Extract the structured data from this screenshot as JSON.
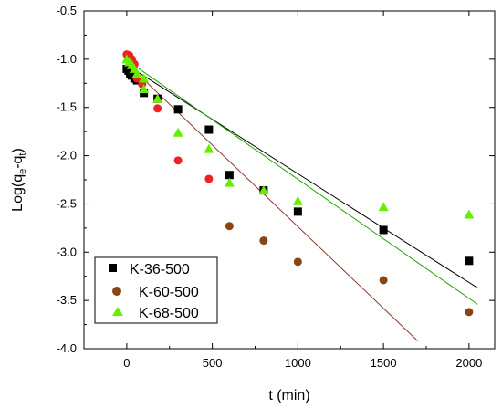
{
  "chart_data": {
    "type": "scatter",
    "xlabel": "t (min)",
    "ylabel": "Log(qe-qt)",
    "ylabel_parts": {
      "base": "Log(q",
      "sub1": "e",
      "mid": "-q",
      "sub2": "t",
      "end": ")"
    },
    "xlim": [
      -250,
      2150
    ],
    "ylim": [
      -4.0,
      -0.5
    ],
    "x_ticks": [
      0,
      500,
      1000,
      1500,
      2000
    ],
    "x_tick_labels": [
      "0",
      "500",
      "1000",
      "1500",
      "2000"
    ],
    "y_ticks": [
      -0.5,
      -1.0,
      -1.5,
      -2.0,
      -2.5,
      -3.0,
      -3.5,
      -4.0
    ],
    "y_tick_labels": [
      "-0.5",
      "-1.0",
      "-1.5",
      "-2.0",
      "-2.5",
      "-3.0",
      "-3.5",
      "-4.0"
    ],
    "grid": false,
    "legend_position": "bottom-left",
    "series": [
      {
        "name": "K-36-500",
        "marker": "square",
        "color": "#000000",
        "fit_color": "#000000",
        "fit_line": {
          "x": [
            0,
            2050
          ],
          "y": [
            -1.06,
            -3.37
          ]
        },
        "points": [
          {
            "x": 0,
            "y": -1.1
          },
          {
            "x": 10,
            "y": -1.12
          },
          {
            "x": 20,
            "y": -1.15
          },
          {
            "x": 30,
            "y": -1.17
          },
          {
            "x": 45,
            "y": -1.2
          },
          {
            "x": 60,
            "y": -1.22
          },
          {
            "x": 100,
            "y": -1.35
          },
          {
            "x": 180,
            "y": -1.41
          },
          {
            "x": 300,
            "y": -1.52
          },
          {
            "x": 480,
            "y": -1.73
          },
          {
            "x": 600,
            "y": -2.2
          },
          {
            "x": 800,
            "y": -2.36
          },
          {
            "x": 1000,
            "y": -2.58
          },
          {
            "x": 1500,
            "y": -2.77
          },
          {
            "x": 2000,
            "y": -3.09
          }
        ]
      },
      {
        "name": "K-60-500",
        "marker": "circle",
        "color": "#8b4513",
        "color_early": "#ee2222",
        "fit_color": "#8b3a2a",
        "fit_line": {
          "x": [
            -20,
            1700
          ],
          "y": [
            -1.01,
            -3.92
          ]
        },
        "points": [
          {
            "x": 0,
            "y": -0.95
          },
          {
            "x": 15,
            "y": -0.96
          },
          {
            "x": 30,
            "y": -1.0
          },
          {
            "x": 45,
            "y": -1.05
          },
          {
            "x": 60,
            "y": -1.2
          },
          {
            "x": 90,
            "y": -1.26
          },
          {
            "x": 180,
            "y": -1.51
          },
          {
            "x": 300,
            "y": -2.05
          },
          {
            "x": 480,
            "y": -2.24
          },
          {
            "x": 600,
            "y": -2.73
          },
          {
            "x": 800,
            "y": -2.88
          },
          {
            "x": 1000,
            "y": -3.1
          },
          {
            "x": 1500,
            "y": -3.29
          },
          {
            "x": 2000,
            "y": -3.62
          }
        ]
      },
      {
        "name": "K-68-500",
        "marker": "triangle",
        "color": "#66ee00",
        "fit_color": "#22aa00",
        "fit_line": {
          "x": [
            0,
            2050
          ],
          "y": [
            -1.01,
            -3.54
          ]
        },
        "points": [
          {
            "x": 0,
            "y": -1.0
          },
          {
            "x": 15,
            "y": -1.03
          },
          {
            "x": 30,
            "y": -1.06
          },
          {
            "x": 45,
            "y": -1.1
          },
          {
            "x": 60,
            "y": -1.15
          },
          {
            "x": 100,
            "y": -1.2
          },
          {
            "x": 100,
            "y": -1.31
          },
          {
            "x": 180,
            "y": -1.41
          },
          {
            "x": 300,
            "y": -1.76
          },
          {
            "x": 480,
            "y": -1.93
          },
          {
            "x": 600,
            "y": -2.28
          },
          {
            "x": 800,
            "y": -2.36
          },
          {
            "x": 1000,
            "y": -2.47
          },
          {
            "x": 1500,
            "y": -2.53
          },
          {
            "x": 2000,
            "y": -2.61
          }
        ]
      }
    ]
  }
}
